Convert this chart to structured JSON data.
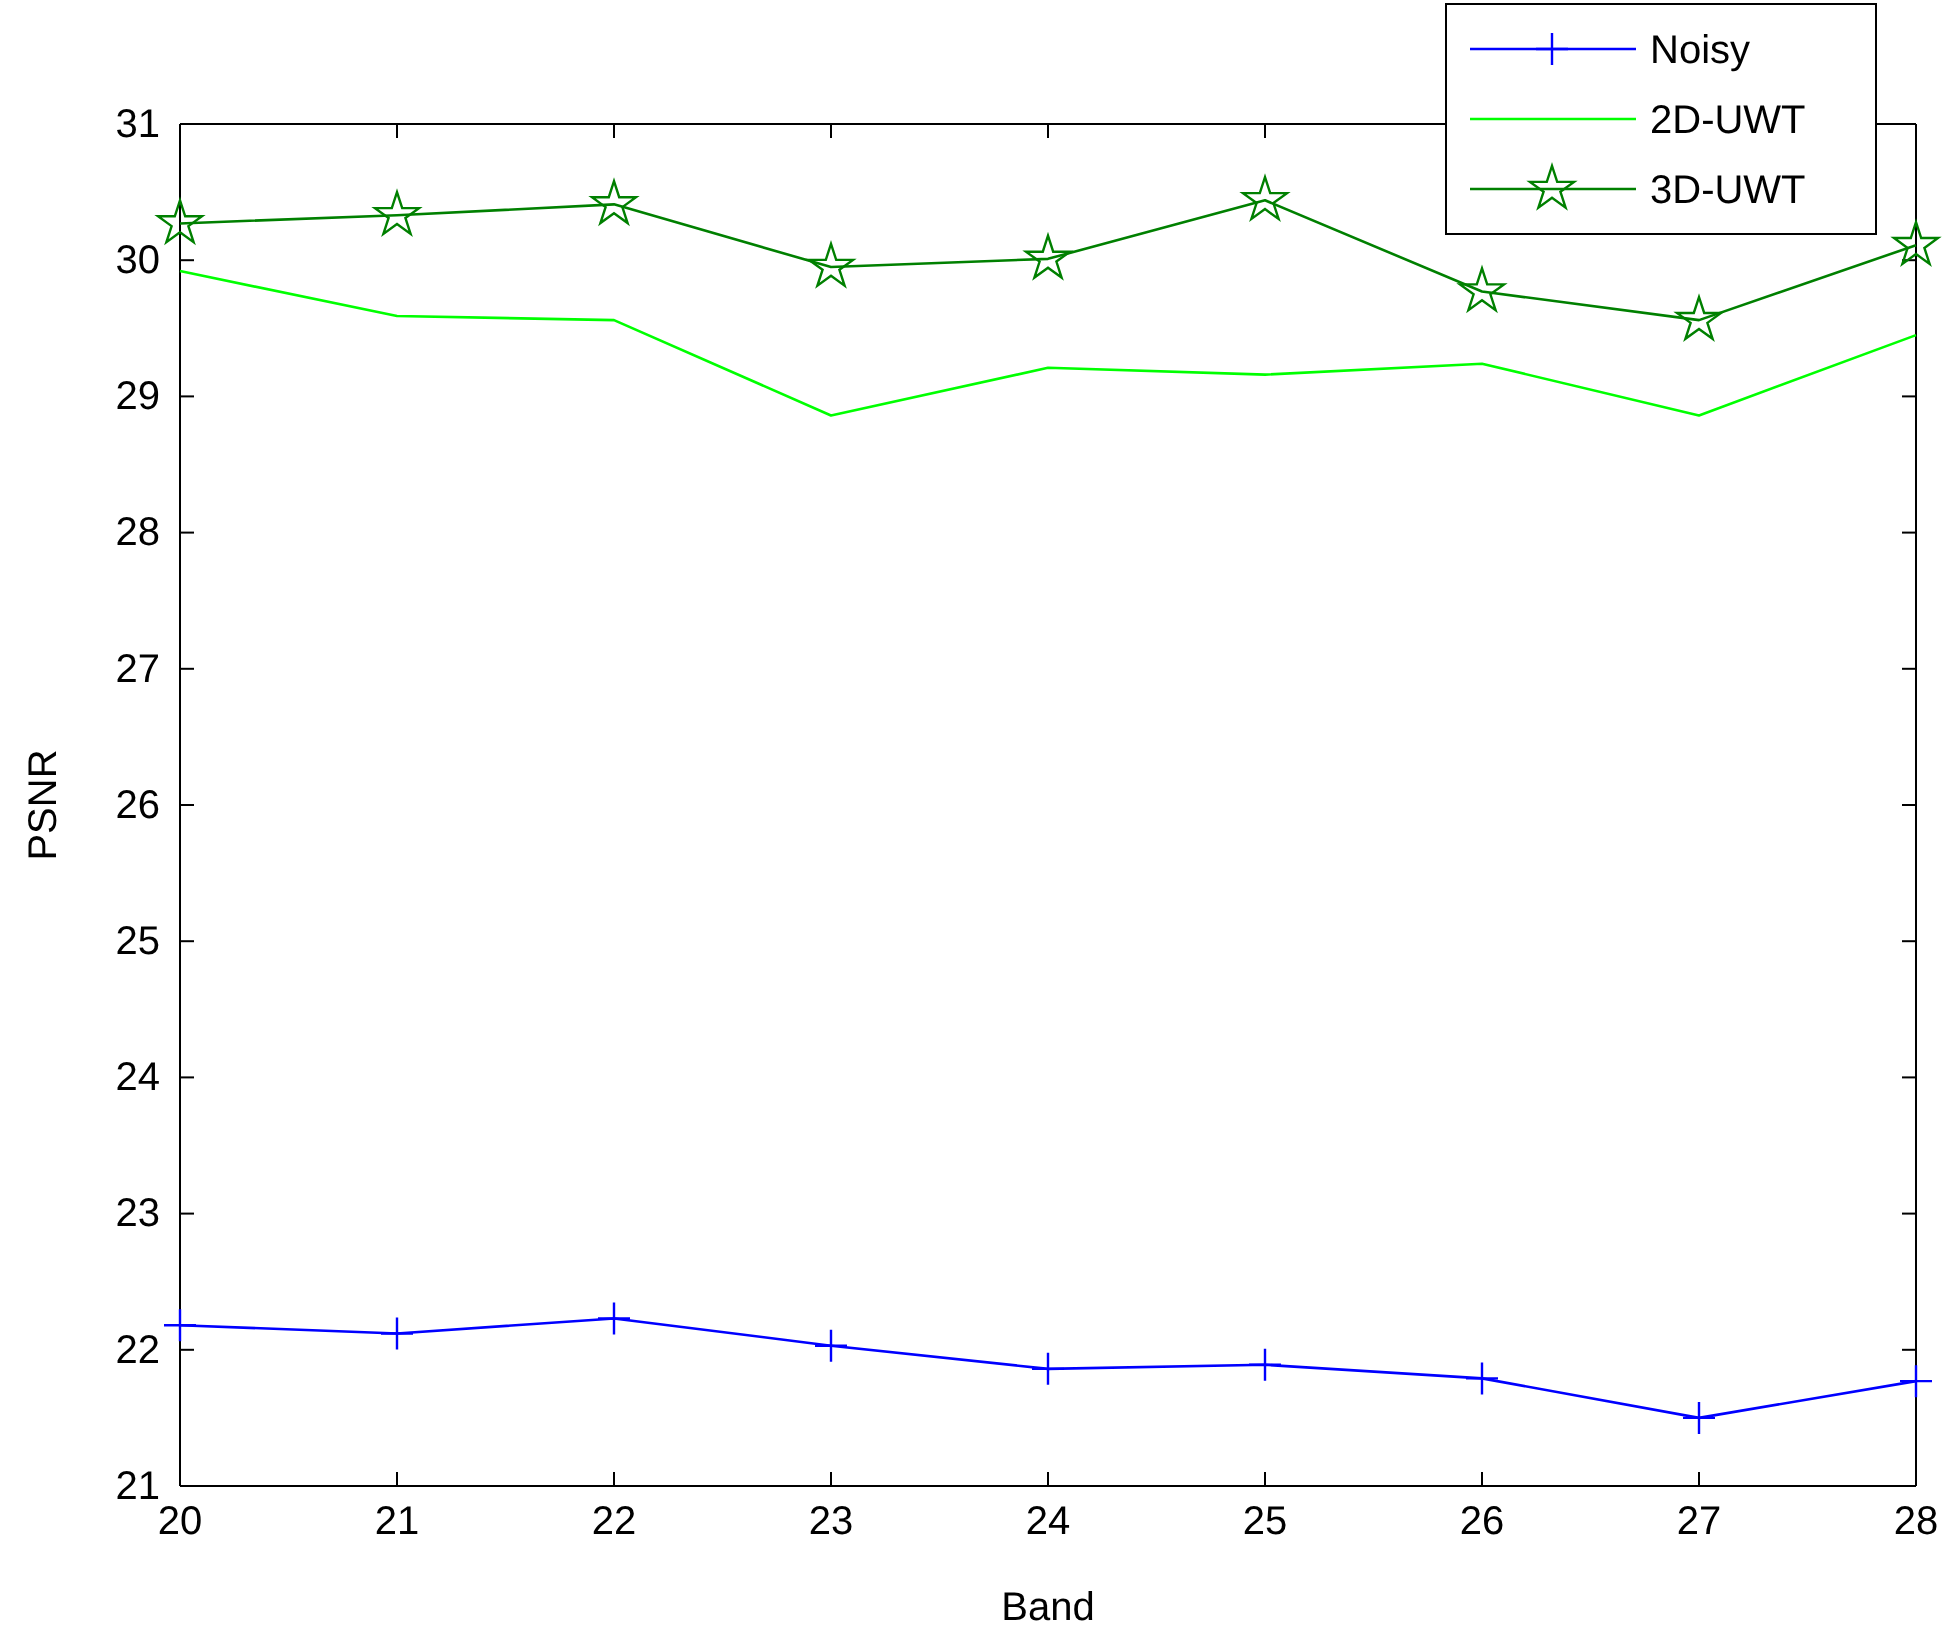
{
  "chart_data": {
    "type": "line",
    "xlabel": "Band",
    "ylabel": "PSNR",
    "x": [
      20,
      21,
      22,
      23,
      24,
      25,
      26,
      27,
      28
    ],
    "xlim": [
      20,
      28
    ],
    "xticks": [
      20,
      21,
      22,
      23,
      24,
      25,
      26,
      27,
      28
    ],
    "ylim": [
      21,
      31
    ],
    "yticks": [
      21,
      22,
      23,
      24,
      25,
      26,
      27,
      28,
      29,
      30,
      31
    ],
    "grid": false,
    "legend": "top right",
    "series": [
      {
        "name": "Noisy",
        "color": "#0000ff",
        "marker": "cross",
        "values": [
          22.18,
          22.12,
          22.23,
          22.03,
          21.86,
          21.89,
          21.79,
          21.5,
          21.77
        ]
      },
      {
        "name": "2D-UWT",
        "color": "#00ff00",
        "marker": "none",
        "values": [
          29.92,
          29.59,
          29.56,
          28.86,
          29.21,
          29.16,
          29.24,
          28.86,
          29.45
        ]
      },
      {
        "name": "3D-UWT",
        "color": "#008000",
        "marker": "star",
        "values": [
          30.27,
          30.33,
          30.41,
          29.95,
          30.01,
          30.44,
          29.77,
          29.56,
          30.11
        ]
      }
    ]
  }
}
